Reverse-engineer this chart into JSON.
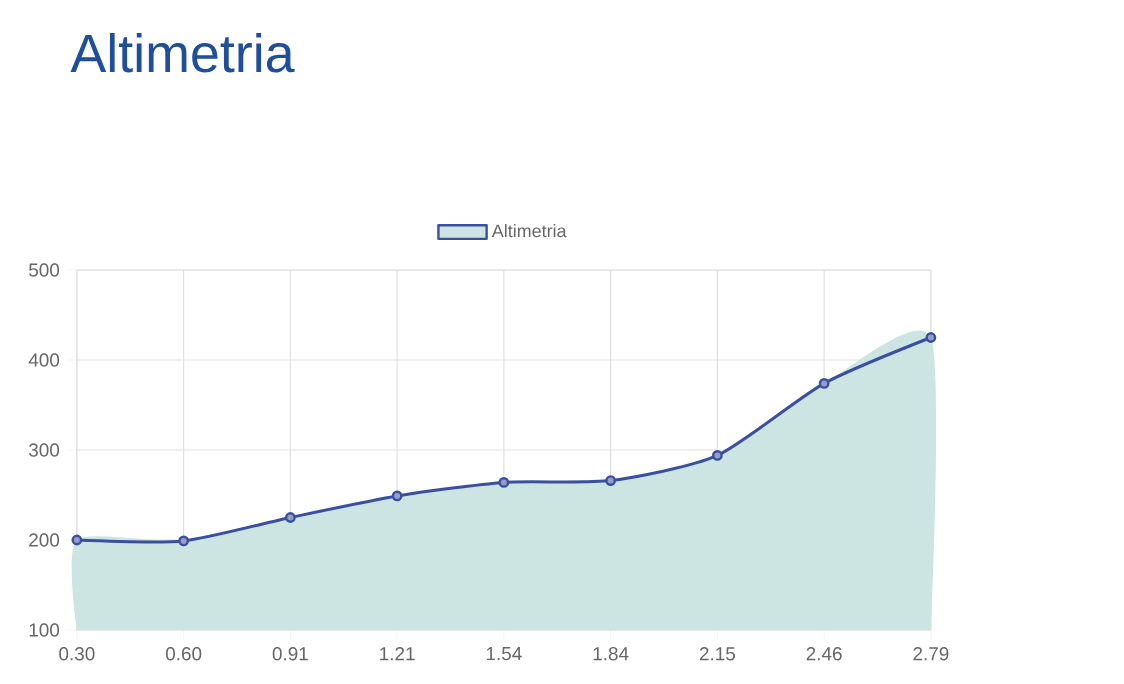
{
  "chart_data": {
    "type": "area",
    "title": "Altimetria",
    "categories": [
      "0.30",
      "0.60",
      "0.91",
      "1.21",
      "1.54",
      "1.84",
      "2.15",
      "2.46",
      "2.79"
    ],
    "series": [
      {
        "name": "Altimetria",
        "color": "#3a4f9f",
        "values": [
          200,
          199,
          225,
          249,
          264,
          266,
          294,
          374,
          425
        ]
      }
    ],
    "ylim": [
      100,
      500
    ],
    "yticks": [
      100,
      200,
      300,
      400,
      500
    ],
    "grid": true,
    "legend": "top",
    "marker": "circle"
  }
}
